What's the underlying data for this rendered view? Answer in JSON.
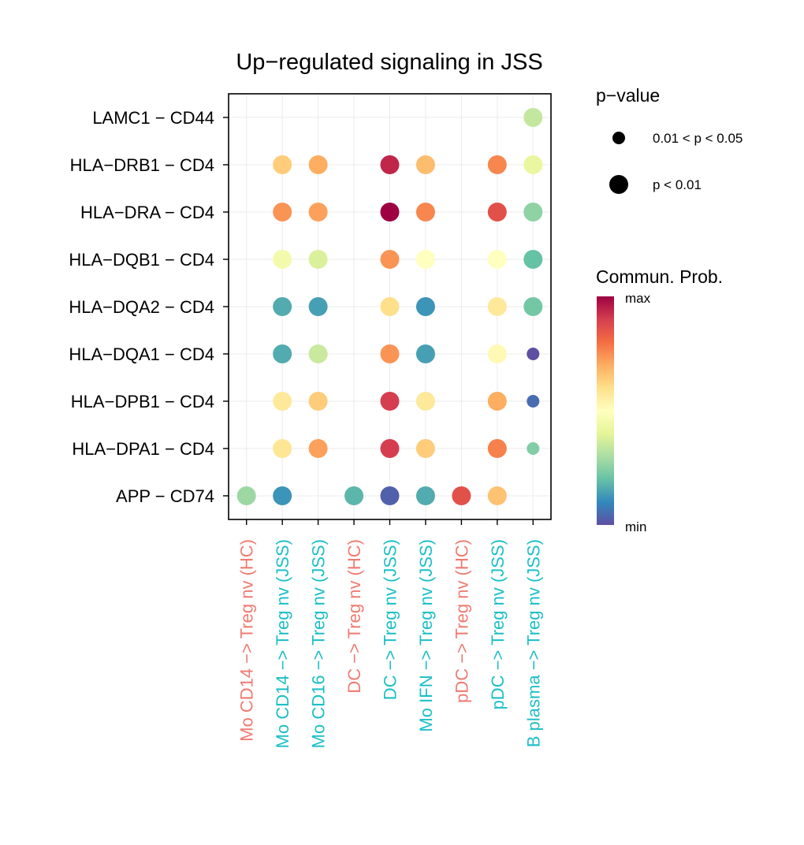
{
  "chart_data": {
    "type": "scatter",
    "title": "Up−regulated signaling in JSS",
    "xlabel": "",
    "ylabel": "",
    "x_categories": [
      "Mo CD14 −> Treg nv (HC)",
      "Mo CD14 −> Treg nv (JSS)",
      "Mo CD16 −> Treg nv (JSS)",
      "DC −> Treg nv (HC)",
      "DC −> Treg nv (JSS)",
      "Mo IFN −> Treg nv (JSS)",
      "pDC −> Treg nv (HC)",
      "pDC −> Treg nv (JSS)",
      "B plasma −> Treg nv (JSS)"
    ],
    "x_category_groups": [
      "HC",
      "JSS",
      "JSS",
      "HC",
      "JSS",
      "JSS",
      "HC",
      "JSS",
      "JSS"
    ],
    "group_colors": {
      "HC": "#F07A71",
      "JSS": "#1ABFC6"
    },
    "y_categories": [
      "APP − CD74",
      "HLA−DPA1 − CD4",
      "HLA−DPB1 − CD4",
      "HLA−DQA1 − CD4",
      "HLA−DQA2 − CD4",
      "HLA−DQB1 − CD4",
      "HLA−DRA − CD4",
      "HLA−DRB1 − CD4",
      "LAMC1 − CD44"
    ],
    "points": [
      {
        "x": 0,
        "y": 0,
        "prob": 0.28,
        "p": "p < 0.01"
      },
      {
        "x": 1,
        "y": 0,
        "prob": 0.12,
        "p": "p < 0.01"
      },
      {
        "x": 3,
        "y": 0,
        "prob": 0.18,
        "p": "p < 0.01"
      },
      {
        "x": 4,
        "y": 0,
        "prob": 0.03,
        "p": "p < 0.01"
      },
      {
        "x": 5,
        "y": 0,
        "prob": 0.16,
        "p": "p < 0.01"
      },
      {
        "x": 6,
        "y": 0,
        "prob": 0.86,
        "p": "p < 0.01"
      },
      {
        "x": 7,
        "y": 0,
        "prob": 0.66,
        "p": "p < 0.01"
      },
      {
        "x": 1,
        "y": 1,
        "prob": 0.58,
        "p": "p < 0.01"
      },
      {
        "x": 2,
        "y": 1,
        "prob": 0.72,
        "p": "p < 0.01"
      },
      {
        "x": 4,
        "y": 1,
        "prob": 0.9,
        "p": "p < 0.01"
      },
      {
        "x": 5,
        "y": 1,
        "prob": 0.64,
        "p": "p < 0.01"
      },
      {
        "x": 7,
        "y": 1,
        "prob": 0.77,
        "p": "p < 0.01"
      },
      {
        "x": 8,
        "y": 1,
        "prob": 0.24,
        "p": "0.01 < p < 0.05"
      },
      {
        "x": 1,
        "y": 2,
        "prob": 0.57,
        "p": "p < 0.01"
      },
      {
        "x": 2,
        "y": 2,
        "prob": 0.64,
        "p": "p < 0.01"
      },
      {
        "x": 4,
        "y": 2,
        "prob": 0.9,
        "p": "p < 0.01"
      },
      {
        "x": 5,
        "y": 2,
        "prob": 0.57,
        "p": "p < 0.01"
      },
      {
        "x": 7,
        "y": 2,
        "prob": 0.7,
        "p": "p < 0.01"
      },
      {
        "x": 8,
        "y": 2,
        "prob": 0.05,
        "p": "0.01 < p < 0.05"
      },
      {
        "x": 1,
        "y": 3,
        "prob": 0.16,
        "p": "p < 0.01"
      },
      {
        "x": 2,
        "y": 3,
        "prob": 0.35,
        "p": "p < 0.01"
      },
      {
        "x": 4,
        "y": 3,
        "prob": 0.74,
        "p": "p < 0.01"
      },
      {
        "x": 5,
        "y": 3,
        "prob": 0.14,
        "p": "p < 0.01"
      },
      {
        "x": 7,
        "y": 3,
        "prob": 0.52,
        "p": "p < 0.01"
      },
      {
        "x": 8,
        "y": 3,
        "prob": 0.0,
        "p": "0.01 < p < 0.05"
      },
      {
        "x": 1,
        "y": 4,
        "prob": 0.16,
        "p": "p < 0.01"
      },
      {
        "x": 2,
        "y": 4,
        "prob": 0.14,
        "p": "p < 0.01"
      },
      {
        "x": 4,
        "y": 4,
        "prob": 0.6,
        "p": "p < 0.01"
      },
      {
        "x": 5,
        "y": 4,
        "prob": 0.12,
        "p": "p < 0.01"
      },
      {
        "x": 7,
        "y": 4,
        "prob": 0.57,
        "p": "p < 0.01"
      },
      {
        "x": 8,
        "y": 4,
        "prob": 0.22,
        "p": "p < 0.01"
      },
      {
        "x": 1,
        "y": 5,
        "prob": 0.45,
        "p": "p < 0.01"
      },
      {
        "x": 2,
        "y": 5,
        "prob": 0.38,
        "p": "p < 0.01"
      },
      {
        "x": 4,
        "y": 5,
        "prob": 0.74,
        "p": "p < 0.01"
      },
      {
        "x": 5,
        "y": 5,
        "prob": 0.5,
        "p": "p < 0.01"
      },
      {
        "x": 7,
        "y": 5,
        "prob": 0.5,
        "p": "p < 0.01"
      },
      {
        "x": 8,
        "y": 5,
        "prob": 0.2,
        "p": "p < 0.01"
      },
      {
        "x": 1,
        "y": 6,
        "prob": 0.74,
        "p": "p < 0.01"
      },
      {
        "x": 2,
        "y": 6,
        "prob": 0.72,
        "p": "p < 0.01"
      },
      {
        "x": 4,
        "y": 6,
        "prob": 1.0,
        "p": "p < 0.01"
      },
      {
        "x": 5,
        "y": 6,
        "prob": 0.76,
        "p": "p < 0.01"
      },
      {
        "x": 7,
        "y": 6,
        "prob": 0.86,
        "p": "p < 0.01"
      },
      {
        "x": 8,
        "y": 6,
        "prob": 0.26,
        "p": "p < 0.01"
      },
      {
        "x": 1,
        "y": 7,
        "prob": 0.64,
        "p": "p < 0.01"
      },
      {
        "x": 2,
        "y": 7,
        "prob": 0.7,
        "p": "p < 0.01"
      },
      {
        "x": 4,
        "y": 7,
        "prob": 0.94,
        "p": "p < 0.01"
      },
      {
        "x": 5,
        "y": 7,
        "prob": 0.67,
        "p": "p < 0.01"
      },
      {
        "x": 7,
        "y": 7,
        "prob": 0.76,
        "p": "p < 0.01"
      },
      {
        "x": 8,
        "y": 7,
        "prob": 0.42,
        "p": "p < 0.01"
      },
      {
        "x": 8,
        "y": 8,
        "prob": 0.34,
        "p": "p < 0.01"
      }
    ],
    "grid": true,
    "legend": {
      "size_title": "p−value",
      "size_items": [
        "0.01 < p < 0.05",
        "p < 0.01"
      ],
      "color_title": "Commun. Prob.",
      "color_max_label": "max",
      "color_min_label": "min",
      "colormap": [
        "#5E4FA2",
        "#3288BD",
        "#66C2A5",
        "#ABDDA4",
        "#E6F598",
        "#FFFFBF",
        "#FEE08B",
        "#FDAE61",
        "#F46D43",
        "#D53E4F",
        "#9E0142"
      ],
      "position": "right"
    }
  }
}
